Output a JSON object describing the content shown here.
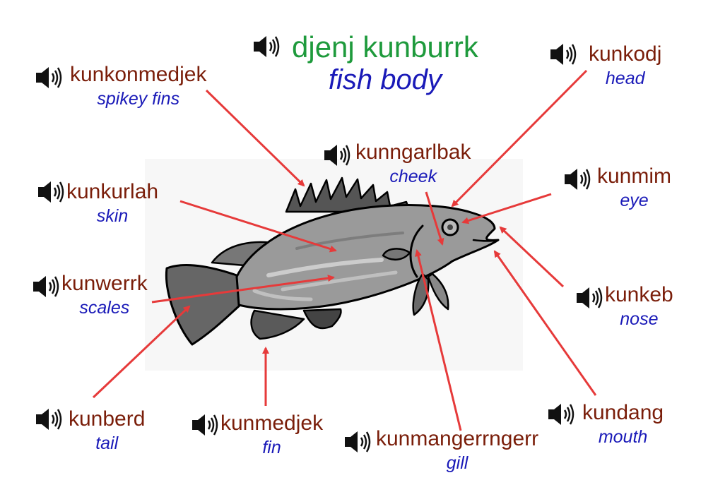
{
  "colors": {
    "indigenous_text": "#7a1e0a",
    "english_text": "#1a1ab8",
    "title_text": "#1e9a3c",
    "arrow": "#e63a3a"
  },
  "icons": {
    "audio": "speaker-icon"
  },
  "title": {
    "indigenous": "djenj kunburrk",
    "english": "fish body"
  },
  "labels": {
    "spikey_fins": {
      "indigenous": "kunkonmedjek",
      "english": "spikey fins"
    },
    "head": {
      "indigenous": "kunkodj",
      "english": "head"
    },
    "cheek": {
      "indigenous": "kunngarlbak",
      "english": "cheek"
    },
    "skin": {
      "indigenous": "kunkurlah",
      "english": "skin"
    },
    "eye": {
      "indigenous": "kunmim",
      "english": "eye"
    },
    "scales": {
      "indigenous": "kunwerrk",
      "english": "scales"
    },
    "nose": {
      "indigenous": "kunkeb",
      "english": "nose"
    },
    "tail": {
      "indigenous": "kunberd",
      "english": "tail"
    },
    "fin": {
      "indigenous": "kunmedjek",
      "english": "fin"
    },
    "gill": {
      "indigenous": "kunmangerrngerr",
      "english": "gill"
    },
    "mouth": {
      "indigenous": "kundang",
      "english": "mouth"
    }
  }
}
